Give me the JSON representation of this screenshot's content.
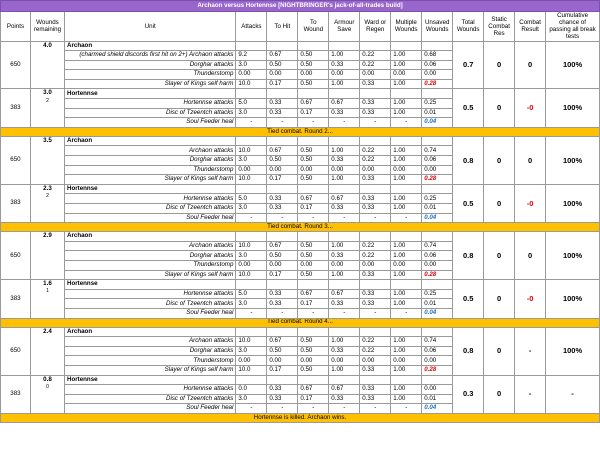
{
  "title": "Archaon versus Hortennse [NIGHTBRINGER's jack-of-all-trades build]",
  "headers": [
    "Points",
    "Wounds remaining",
    "Unit",
    "Attacks",
    "To Hit",
    "To Wound",
    "Armour Save",
    "Ward or Regen",
    "Multiple Wounds",
    "Unsaved Wounds",
    "Total Wounds",
    "Static Combat Res",
    "Combat Result",
    "Cumulative chance of passing all break tests"
  ],
  "rounds": [
    {
      "archaon": {
        "points": "650",
        "wounds": "4.0",
        "name": "Archaon",
        "total": "0.7",
        "static": "0",
        "result": "0",
        "chance": "100%",
        "rows": [
          {
            "label": "(charmed shield discords first hit on 2+) Archaon attacks",
            "vals": [
              "9.2",
              "0.67",
              "0.50",
              "1.00",
              "0.22",
              "1.00",
              "0.68"
            ]
          },
          {
            "label": "Dorghar attacks",
            "vals": [
              "3.0",
              "0.50",
              "0.50",
              "0.33",
              "0.22",
              "1.00",
              "0.06"
            ]
          },
          {
            "label": "Thunderstomp",
            "vals": [
              "0.00",
              "0.00",
              "0.00",
              "0.00",
              "0.00",
              "0.00",
              "0.00"
            ]
          },
          {
            "label": "Slayer of Kings self harm",
            "vals": [
              "10.0",
              "0.17",
              "0.50",
              "1.00",
              "0.33",
              "1.00",
              "0.28"
            ]
          }
        ]
      },
      "hort": {
        "points": "383",
        "wounds": "3.0",
        "wsub": "2",
        "name": "Hortennse",
        "total": "0.5",
        "static": "0",
        "result": "-0",
        "chance": "100%",
        "rows": [
          {
            "label": "Hortennse attacks",
            "vals": [
              "5.0",
              "0.33",
              "0.67",
              "0.67",
              "0.33",
              "1.00",
              "0.25"
            ]
          },
          {
            "label": "Disc of Tzeentch attacks",
            "vals": [
              "3.0",
              "0.33",
              "0.17",
              "0.33",
              "0.33",
              "1.00",
              "0.01"
            ]
          },
          {
            "label": "Soul Feeder heal",
            "vals": [
              "-",
              "-",
              "-",
              "-",
              "-",
              "-",
              "0.04"
            ]
          }
        ]
      },
      "separator": "Tied combat.  Round 2..."
    },
    {
      "archaon": {
        "points": "650",
        "wounds": "3.5",
        "name": "Archaon",
        "total": "0.8",
        "static": "0",
        "result": "0",
        "chance": "100%",
        "rows": [
          {
            "label": "Archaon attacks",
            "vals": [
              "10.0",
              "0.67",
              "0.50",
              "1.00",
              "0.22",
              "1.00",
              "0.74"
            ]
          },
          {
            "label": "Dorghar attacks",
            "vals": [
              "3.0",
              "0.50",
              "0.50",
              "0.33",
              "0.22",
              "1.00",
              "0.06"
            ]
          },
          {
            "label": "Thunderstomp",
            "vals": [
              "0.00",
              "0.00",
              "0.00",
              "0.00",
              "0.00",
              "0.00",
              "0.00"
            ]
          },
          {
            "label": "Slayer of Kings self harm",
            "vals": [
              "10.0",
              "0.17",
              "0.50",
              "1.00",
              "0.33",
              "1.00",
              "0.28"
            ]
          }
        ]
      },
      "hort": {
        "points": "383",
        "wounds": "2.3",
        "wsub": "2",
        "name": "Hortennse",
        "total": "0.5",
        "static": "0",
        "result": "-0",
        "chance": "100%",
        "rows": [
          {
            "label": "Hortennse attacks",
            "vals": [
              "5.0",
              "0.33",
              "0.67",
              "0.67",
              "0.33",
              "1.00",
              "0.25"
            ]
          },
          {
            "label": "Disc of Tzeentch attacks",
            "vals": [
              "3.0",
              "0.33",
              "0.17",
              "0.33",
              "0.33",
              "1.00",
              "0.01"
            ]
          },
          {
            "label": "Soul Feeder heal",
            "vals": [
              "-",
              "-",
              "-",
              "-",
              "-",
              "-",
              "0.04"
            ]
          }
        ]
      },
      "separator": "Tied combat.  Round 3..."
    },
    {
      "archaon": {
        "points": "650",
        "wounds": "2.9",
        "name": "Archaon",
        "total": "0.8",
        "static": "0",
        "result": "0",
        "chance": "100%",
        "rows": [
          {
            "label": "Archaon attacks",
            "vals": [
              "10.0",
              "0.67",
              "0.50",
              "1.00",
              "0.22",
              "1.00",
              "0.74"
            ]
          },
          {
            "label": "Dorghar attacks",
            "vals": [
              "3.0",
              "0.50",
              "0.50",
              "0.33",
              "0.22",
              "1.00",
              "0.06"
            ]
          },
          {
            "label": "Thunderstomp",
            "vals": [
              "0.00",
              "0.00",
              "0.00",
              "0.00",
              "0.00",
              "0.00",
              "0.00"
            ]
          },
          {
            "label": "Slayer of Kings self harm",
            "vals": [
              "10.0",
              "0.17",
              "0.50",
              "1.00",
              "0.33",
              "1.00",
              "0.28"
            ]
          }
        ]
      },
      "hort": {
        "points": "383",
        "wounds": "1.6",
        "wsub": "1",
        "name": "Hortennse",
        "total": "0.5",
        "static": "0",
        "result": "-0",
        "chance": "100%",
        "rows": [
          {
            "label": "Hortennse attacks",
            "vals": [
              "5.0",
              "0.33",
              "0.67",
              "0.67",
              "0.33",
              "1.00",
              "0.25"
            ]
          },
          {
            "label": "Disc of Tzeentch attacks",
            "vals": [
              "3.0",
              "0.33",
              "0.17",
              "0.33",
              "0.33",
              "1.00",
              "0.01"
            ]
          },
          {
            "label": "Soul Feeder heal",
            "vals": [
              "-",
              "-",
              "-",
              "-",
              "-",
              "-",
              "0.04"
            ]
          }
        ]
      },
      "separator": "Tied combat.  Round 4..."
    },
    {
      "archaon": {
        "points": "650",
        "wounds": "2.4",
        "name": "Archaon",
        "total": "0.8",
        "static": "0",
        "result": "-",
        "chance": "100%",
        "rows": [
          {
            "label": "Archaon attacks",
            "vals": [
              "10.0",
              "0.67",
              "0.50",
              "1.00",
              "0.22",
              "1.00",
              "0.74"
            ]
          },
          {
            "label": "Dorghar attacks",
            "vals": [
              "3.0",
              "0.50",
              "0.50",
              "0.33",
              "0.22",
              "1.00",
              "0.06"
            ]
          },
          {
            "label": "Thunderstomp",
            "vals": [
              "0.00",
              "0.00",
              "0.00",
              "0.00",
              "0.00",
              "0.00",
              "0.00"
            ]
          },
          {
            "label": "Slayer of Kings self harm",
            "vals": [
              "10.0",
              "0.17",
              "0.50",
              "1.00",
              "0.33",
              "1.00",
              "0.28"
            ]
          }
        ]
      },
      "hort": {
        "points": "383",
        "wounds": "0.8",
        "wsub": "0",
        "name": "Hortennse",
        "total": "0.3",
        "static": "0",
        "result": "-",
        "chance": "-",
        "rows": [
          {
            "label": "Hortennse attacks",
            "vals": [
              "0.0",
              "0.33",
              "0.67",
              "0.67",
              "0.33",
              "1.00",
              "0.00"
            ]
          },
          {
            "label": "Disc of Tzeentch attacks",
            "vals": [
              "3.0",
              "0.33",
              "0.17",
              "0.33",
              "0.33",
              "1.00",
              "0.01"
            ]
          },
          {
            "label": "Soul Feeder heal",
            "vals": [
              "-",
              "-",
              "-",
              "-",
              "-",
              "-",
              "0.04"
            ]
          }
        ]
      },
      "separator": "Hortennse is killed.  Archaon wins."
    }
  ],
  "colors": {
    "title_bg": "#9966cc",
    "separator_bg": "#ffc000",
    "self_harm": "#e00000",
    "heal": "#1f72c8"
  }
}
